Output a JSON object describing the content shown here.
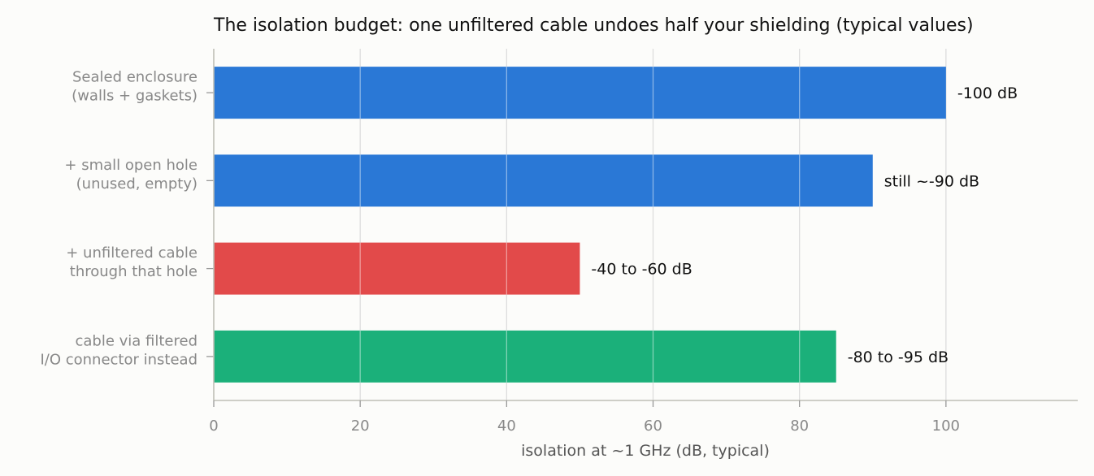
{
  "chart_data": {
    "type": "bar",
    "orientation": "horizontal",
    "title": "The isolation budget: one unfiltered cable undoes half your shielding (typical values)",
    "xlabel": "isolation at ~1 GHz (dB, typical)",
    "ylabel": "",
    "xlim": [
      0,
      118
    ],
    "xticks": [
      0,
      20,
      40,
      60,
      80,
      100
    ],
    "grid": true,
    "categories": [
      [
        "Sealed enclosure",
        "(walls + gaskets)"
      ],
      [
        "+ small open hole",
        "(unused, empty)"
      ],
      [
        "+ unfiltered cable",
        "through that hole"
      ],
      [
        "cable via filtered",
        "I/O connector instead"
      ]
    ],
    "values": [
      100,
      90,
      50,
      85
    ],
    "data_labels": [
      "-100 dB",
      "still ~-90 dB",
      "-40 to -60 dB",
      "-80 to -95 dB"
    ],
    "colors": [
      "#2a78d6",
      "#2a78d6",
      "#e24a4a",
      "#1bb07a"
    ]
  }
}
